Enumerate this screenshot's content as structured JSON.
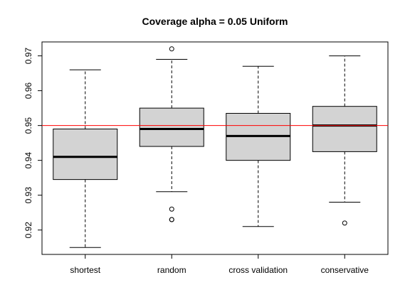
{
  "chart_data": {
    "type": "box",
    "title": "Coverage alpha = 0.05 Uniform",
    "xlabel": "",
    "ylabel": "",
    "categories": [
      "shortest",
      "random",
      "cross validation",
      "conservative"
    ],
    "ylim": [
      0.913,
      0.974
    ],
    "yticks": [
      0.92,
      0.93,
      0.94,
      0.95,
      0.96,
      0.97
    ],
    "ytick_labels": [
      "0.92",
      "0.93",
      "0.94",
      "0.95",
      "0.96",
      "0.97"
    ],
    "boxes": [
      {
        "min": 0.915,
        "q1": 0.9345,
        "median": 0.941,
        "q3": 0.949,
        "max": 0.966,
        "outliers": []
      },
      {
        "min": 0.931,
        "q1": 0.944,
        "median": 0.949,
        "q3": 0.955,
        "max": 0.969,
        "outliers": [
          0.972,
          0.926,
          0.923,
          0.923
        ]
      },
      {
        "min": 0.921,
        "q1": 0.94,
        "median": 0.947,
        "q3": 0.9535,
        "max": 0.967,
        "outliers": []
      },
      {
        "min": 0.928,
        "q1": 0.9425,
        "median": 0.95,
        "q3": 0.9555,
        "max": 0.97,
        "outliers": [
          0.922
        ]
      }
    ],
    "reference_line": {
      "value": 0.95,
      "color": "#ff0000"
    },
    "box_fill": "#d3d3d3",
    "grid": false,
    "legend": "none"
  }
}
